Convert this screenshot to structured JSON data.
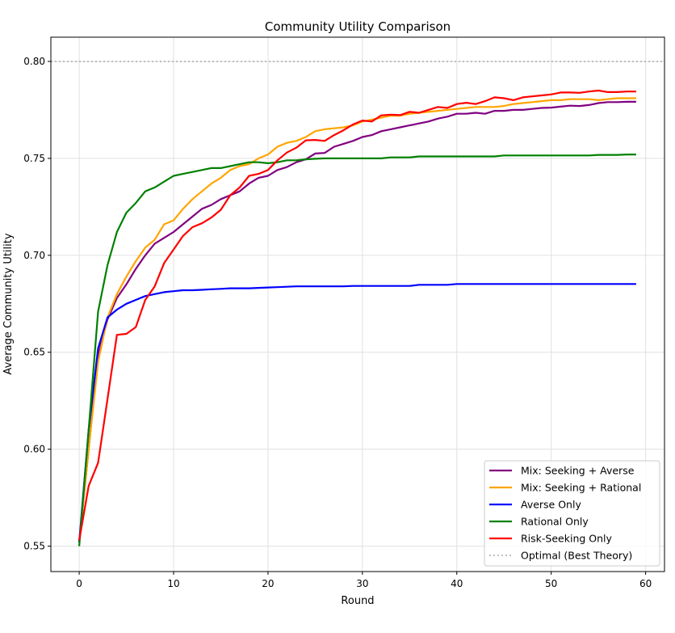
{
  "chart_data": {
    "type": "line",
    "title": "Community Utility Comparison",
    "xlabel": "Round",
    "ylabel": "Average Community Utility",
    "xlim": [
      -3,
      62
    ],
    "ylim": [
      0.5369,
      0.8125
    ],
    "xticks": [
      "0",
      "10",
      "20",
      "30",
      "40",
      "50",
      "60"
    ],
    "yticks": [
      "0.55",
      "0.60",
      "0.65",
      "0.70",
      "0.75",
      "0.80"
    ],
    "grid": true,
    "legend_position": "bottom-right",
    "series": [
      {
        "name": "Mix: Seeking + Averse",
        "color": "#800080",
        "values": [
          0.552,
          0.6,
          0.648,
          0.667,
          0.678,
          0.685,
          0.693,
          0.7,
          0.706,
          0.709,
          0.712,
          0.716,
          0.72,
          0.724,
          0.726,
          0.729,
          0.731,
          0.733,
          0.737,
          0.74,
          0.741,
          0.744,
          0.7455,
          0.748,
          0.7495,
          0.7525,
          0.7528,
          0.756,
          0.7575,
          0.759,
          0.761,
          0.762,
          0.764,
          0.765,
          0.766,
          0.767,
          0.768,
          0.769,
          0.7705,
          0.7715,
          0.773,
          0.773,
          0.7735,
          0.773,
          0.7745,
          0.7745,
          0.775,
          0.775,
          0.7755,
          0.776,
          0.7762,
          0.7767,
          0.7772,
          0.777,
          0.7775,
          0.7785,
          0.779,
          0.779,
          0.7792,
          0.7792
        ]
      },
      {
        "name": "Mix: Seeking + Rational",
        "color": "#ffa500",
        "values": [
          0.552,
          0.6,
          0.645,
          0.668,
          0.68,
          0.689,
          0.697,
          0.704,
          0.708,
          0.716,
          0.718,
          0.724,
          0.729,
          0.733,
          0.737,
          0.74,
          0.744,
          0.746,
          0.747,
          0.75,
          0.752,
          0.756,
          0.758,
          0.759,
          0.761,
          0.764,
          0.765,
          0.7655,
          0.766,
          0.767,
          0.769,
          0.77,
          0.771,
          0.772,
          0.772,
          0.773,
          0.7735,
          0.774,
          0.7745,
          0.775,
          0.7755,
          0.776,
          0.7765,
          0.7765,
          0.7765,
          0.777,
          0.778,
          0.7785,
          0.779,
          0.7795,
          0.78,
          0.78,
          0.7805,
          0.7805,
          0.7805,
          0.78,
          0.7805,
          0.781,
          0.781,
          0.781
        ]
      },
      {
        "name": "Averse Only",
        "color": "#0000ff",
        "values": [
          0.552,
          0.61,
          0.652,
          0.668,
          0.672,
          0.675,
          0.677,
          0.679,
          0.68,
          0.681,
          0.6815,
          0.682,
          0.682,
          0.6822,
          0.6825,
          0.6827,
          0.683,
          0.683,
          0.683,
          0.6832,
          0.6834,
          0.6836,
          0.6838,
          0.684,
          0.684,
          0.684,
          0.684,
          0.684,
          0.684,
          0.6842,
          0.6842,
          0.6842,
          0.6842,
          0.6842,
          0.6842,
          0.6842,
          0.6848,
          0.6848,
          0.6848,
          0.6848,
          0.6852,
          0.6852,
          0.6852,
          0.6852,
          0.6852,
          0.6852,
          0.6852,
          0.6852,
          0.6852,
          0.6852,
          0.6852,
          0.6852,
          0.6852,
          0.6852,
          0.6852,
          0.6852,
          0.6852,
          0.6852,
          0.6852,
          0.6852
        ]
      },
      {
        "name": "Rational Only",
        "color": "#008000",
        "values": [
          0.55,
          0.61,
          0.671,
          0.695,
          0.712,
          0.722,
          0.727,
          0.733,
          0.735,
          0.738,
          0.741,
          0.742,
          0.743,
          0.744,
          0.745,
          0.745,
          0.746,
          0.747,
          0.748,
          0.748,
          0.7475,
          0.748,
          0.749,
          0.749,
          0.7495,
          0.7498,
          0.75,
          0.75,
          0.75,
          0.75,
          0.75,
          0.75,
          0.75,
          0.7505,
          0.7505,
          0.7505,
          0.751,
          0.751,
          0.751,
          0.751,
          0.751,
          0.751,
          0.751,
          0.751,
          0.751,
          0.7515,
          0.7515,
          0.7515,
          0.7515,
          0.7515,
          0.7515,
          0.7515,
          0.7515,
          0.7515,
          0.7515,
          0.7518,
          0.7518,
          0.7518,
          0.752,
          0.752
        ]
      },
      {
        "name": "Risk-Seeking Only",
        "color": "#ff0000",
        "values": [
          0.553,
          0.581,
          0.593,
          0.626,
          0.659,
          0.6595,
          0.663,
          0.677,
          0.684,
          0.696,
          0.703,
          0.71,
          0.7145,
          0.7165,
          0.7195,
          0.7235,
          0.731,
          0.735,
          0.741,
          0.742,
          0.744,
          0.749,
          0.753,
          0.7555,
          0.7593,
          0.7595,
          0.759,
          0.762,
          0.7645,
          0.7675,
          0.7695,
          0.769,
          0.7722,
          0.7725,
          0.7723,
          0.774,
          0.7735,
          0.775,
          0.7765,
          0.776,
          0.778,
          0.7787,
          0.778,
          0.7795,
          0.7815,
          0.781,
          0.78,
          0.7815,
          0.782,
          0.7825,
          0.783,
          0.784,
          0.784,
          0.7838,
          0.7845,
          0.785,
          0.7842,
          0.7842,
          0.7845,
          0.7845
        ]
      }
    ],
    "reference_line": {
      "name": "Optimal (Best Theory)",
      "value": 0.8,
      "color": "#aaaaaa"
    }
  }
}
